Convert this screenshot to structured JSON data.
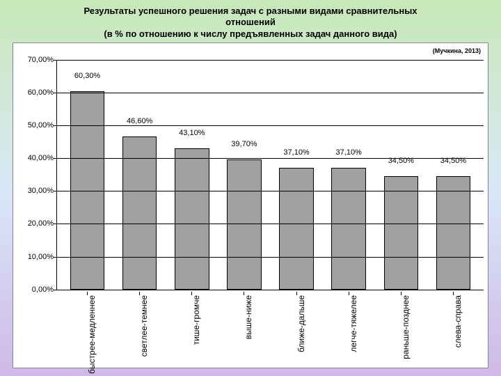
{
  "title_line1": "Результаты успешного решения задач с разными видами сравнительных",
  "title_line2": "отношений",
  "title_line3": "(в % по отношению к числу предъявленных задач данного вида)",
  "citation": "(Мучкина, 2013)",
  "chart": {
    "type": "bar",
    "ymax": 70,
    "ytick_step": 10,
    "y_ticks": [
      {
        "v": 0,
        "label": "0,00%"
      },
      {
        "v": 10,
        "label": "10,00%"
      },
      {
        "v": 20,
        "label": "20,00%"
      },
      {
        "v": 30,
        "label": "30,00%"
      },
      {
        "v": 40,
        "label": "40,00%"
      },
      {
        "v": 50,
        "label": "50,00%"
      },
      {
        "v": 60,
        "label": "60,00%"
      },
      {
        "v": 70,
        "label": "70,00%"
      }
    ],
    "bar_color": "#a0a0a0",
    "bar_border": "#000000",
    "grid_color": "#000000",
    "background": "#ffffff",
    "slide_gradient": [
      "#c8e8b8",
      "#d8e8f8",
      "#d0b8e8"
    ],
    "label_fontsize": 12,
    "value_fontsize": 11,
    "bars": [
      {
        "label": "быстрее-медленнее",
        "value": 60.3,
        "value_label": "60,30%"
      },
      {
        "label": "светлее-темнее",
        "value": 46.6,
        "value_label": "46,60%"
      },
      {
        "label": "тише-громче",
        "value": 43.1,
        "value_label": "43,10%"
      },
      {
        "label": "выше-ниже",
        "value": 39.7,
        "value_label": "39,70%"
      },
      {
        "label": "ближе-дальше",
        "value": 37.1,
        "value_label": "37,10%"
      },
      {
        "label": "легче-тяжелее",
        "value": 37.1,
        "value_label": "37,10%"
      },
      {
        "label": "раньше-позднее",
        "value": 34.5,
        "value_label": "34,50%"
      },
      {
        "label": "слева-справа",
        "value": 34.5,
        "value_label": "34,50%"
      }
    ]
  }
}
